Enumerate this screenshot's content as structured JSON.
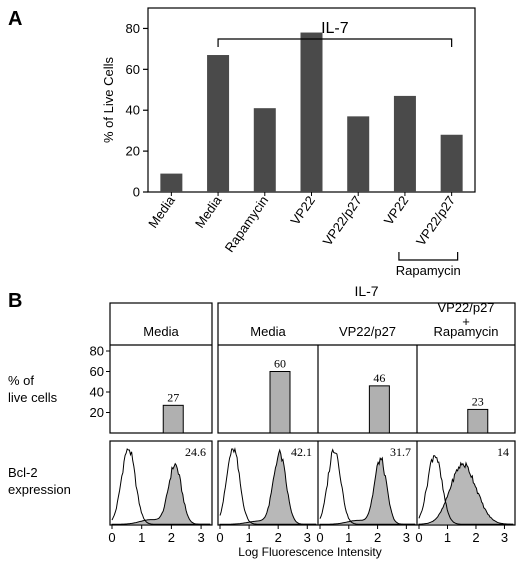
{
  "chart_data": [
    {
      "panel": "A",
      "type": "bar",
      "ylabel": "% of Live Cells",
      "ylim": [
        0,
        90
      ],
      "yticks": [
        0,
        20,
        40,
        60,
        80
      ],
      "categories": [
        "Media",
        "Media",
        "Rapamycin",
        "VP22",
        "VP22/p27",
        "VP22",
        "VP22/p27"
      ],
      "values": [
        9,
        67,
        41,
        78,
        37,
        47,
        28
      ],
      "bar_color": "#4a4a4a",
      "bracket_label": "IL-7",
      "group_label": "Rapamycin"
    },
    {
      "panel": "B",
      "type": "bar",
      "group_label": "IL-7",
      "ylabel_lines": [
        "% of",
        "live cells"
      ],
      "yticks": [
        20,
        40,
        60,
        80
      ],
      "ylim": [
        0,
        80
      ],
      "conditions": [
        "Media",
        "Media",
        "VP22/p27",
        "VP22/p27 + Rapamycin"
      ],
      "condition_lines": [
        [
          "Media"
        ],
        [
          "Media"
        ],
        [
          "VP22/p27"
        ],
        [
          "VP22/p27",
          "+",
          "Rapamycin"
        ]
      ],
      "values": [
        27,
        60,
        46,
        23
      ],
      "value_labels": [
        "27",
        "60",
        "46",
        "23"
      ],
      "bar_color": "#b0b0b0"
    },
    {
      "panel": "B",
      "type": "area",
      "ylabel_lines": [
        "Bcl-2",
        "expression"
      ],
      "xlabel": "Log Fluorescence Intensity",
      "xticks": [
        "0",
        "1",
        "2",
        "3"
      ],
      "xlim": [
        0,
        3.3
      ],
      "values": [
        24.6,
        42.1,
        31.7,
        14
      ],
      "value_labels": [
        "24.6",
        "42.1",
        "31.7",
        "14"
      ],
      "fill_color": "#b8b8b8"
    }
  ],
  "labels": {
    "panel_a": "A",
    "panel_b": "B"
  }
}
